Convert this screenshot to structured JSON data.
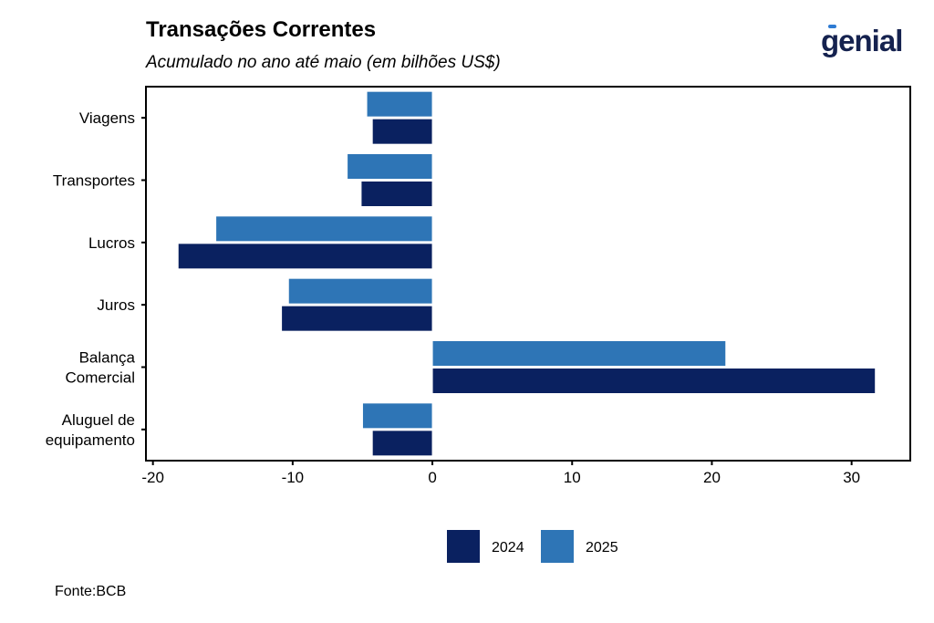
{
  "header": {
    "title": "Transações Correntes",
    "subtitle": "Acumulado no ano até maio (em bilhões US$)",
    "logo_text": "genial"
  },
  "footer": {
    "source": "Fonte:BCB"
  },
  "colors": {
    "2024": "#0a2160",
    "2025": "#2e75b6",
    "accent": "#2e7bd3"
  },
  "chart_data": {
    "type": "bar",
    "orientation": "horizontal",
    "title": "Transações Correntes",
    "subtitle": "Acumulado no ano até maio (em bilhões US$)",
    "categories": [
      "Viagens",
      "Transportes",
      "Lucros",
      "Juros",
      "Balança Comercial",
      "Aluguel de equipamento"
    ],
    "category_lines": [
      [
        "Viagens"
      ],
      [
        "Transportes"
      ],
      [
        "Lucros"
      ],
      [
        "Juros"
      ],
      [
        "Balança",
        "Comercial"
      ],
      [
        "Aluguel de",
        "equipamento"
      ]
    ],
    "series": [
      {
        "name": "2024",
        "color": "#0a2160",
        "values": [
          -4.3,
          -5.1,
          -18.2,
          -10.8,
          31.7,
          -4.3
        ]
      },
      {
        "name": "2025",
        "color": "#2e75b6",
        "values": [
          -4.7,
          -6.1,
          -15.5,
          -10.3,
          21.0,
          -5.0
        ]
      }
    ],
    "xlim": [
      -20.5,
      34.2
    ],
    "xticks": [
      -20,
      -10,
      0,
      10,
      20,
      30
    ],
    "xlabel": "",
    "ylabel": "",
    "grid": false,
    "legend": "bottom"
  }
}
